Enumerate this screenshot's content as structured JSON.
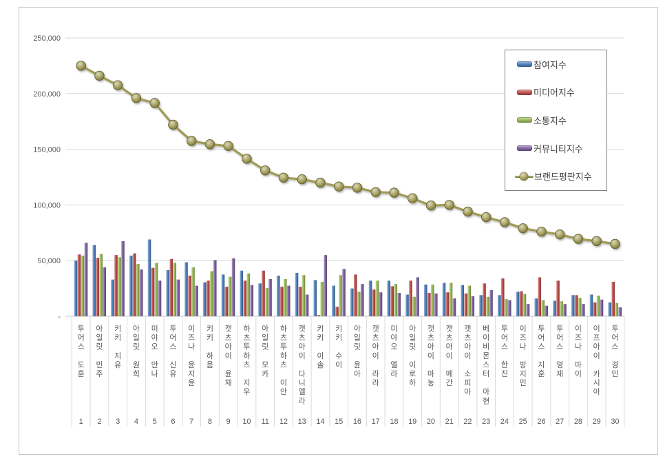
{
  "chart_data": {
    "type": "bar+line combo",
    "title": "",
    "categories": [
      "투어스 도훈",
      "아일릿 민주",
      "키키 지유",
      "아일릿 원희",
      "미야오 안나",
      "투어스 신유",
      "이즈나 윤지윤",
      "키키 하음",
      "캣츠아이 윤채",
      "하츠투하츠 지우",
      "아일릿 모카",
      "하츠투하츠 이안",
      "캣츠아이 다니엘라",
      "키키 이솔",
      "키키 수이",
      "아일릿 윤아",
      "캣츠아이 라라",
      "미야오 엘라",
      "아일릿 이로하",
      "캣츠아이 마농",
      "캣츠아이 메간",
      "캣츠아이 소피아",
      "베이비몬스터 아현",
      "투어스 한진",
      "이즈나 방지민",
      "투어스 지훈",
      "투어스 영재",
      "이즈나 마이",
      "이프아이 카시아",
      "투어스 경민"
    ],
    "ranks": [
      "1",
      "2",
      "3",
      "4",
      "5",
      "6",
      "7",
      "8",
      "9",
      "10",
      "11",
      "12",
      "13",
      "14",
      "15",
      "16",
      "17",
      "18",
      "19",
      "20",
      "21",
      "22",
      "23",
      "24",
      "25",
      "26",
      "27",
      "28",
      "29",
      "30"
    ],
    "series": [
      {
        "name": "참여지수",
        "type": "bar",
        "color": "#4F81BD",
        "values": [
          50000,
          64000,
          33000,
          54500,
          69000,
          41500,
          48500,
          30500,
          37500,
          41000,
          29500,
          36500,
          39000,
          32500,
          27500,
          25000,
          32000,
          32000,
          19500,
          28500,
          30000,
          28000,
          19000,
          19000,
          22000,
          16000,
          14000,
          19000,
          19500,
          12500
        ]
      },
      {
        "name": "미디어지수",
        "type": "bar",
        "color": "#C0504D",
        "values": [
          55500,
          52500,
          55000,
          56500,
          43500,
          51500,
          36500,
          32000,
          26500,
          32000,
          41000,
          26500,
          26500,
          1000,
          8500,
          37500,
          24000,
          27000,
          32000,
          21000,
          21500,
          20500,
          29500,
          34000,
          22500,
          35000,
          32000,
          19000,
          12500,
          31000
        ]
      },
      {
        "name": "소통지수",
        "type": "bar",
        "color": "#9BBB59",
        "values": [
          54500,
          56000,
          53000,
          47000,
          48000,
          48000,
          44000,
          40500,
          35500,
          38500,
          25500,
          33500,
          37000,
          31000,
          37000,
          22000,
          32000,
          29000,
          17500,
          28500,
          30000,
          27500,
          17500,
          15500,
          20000,
          14500,
          13500,
          16500,
          18500,
          12000
        ]
      },
      {
        "name": "커뮤니티지수",
        "type": "bar",
        "color": "#8064A2",
        "values": [
          66000,
          44000,
          67500,
          42000,
          32000,
          33000,
          27500,
          50500,
          52000,
          28000,
          33500,
          27500,
          19500,
          55000,
          42500,
          29000,
          21500,
          21000,
          35000,
          20500,
          16000,
          18000,
          23500,
          14500,
          11000,
          9500,
          11000,
          11000,
          15000,
          8000
        ]
      },
      {
        "name": "브랜드평판지수",
        "type": "line",
        "color": "#A09A55",
        "values": [
          225000,
          216000,
          207500,
          196000,
          191500,
          172000,
          157500,
          154500,
          153000,
          141500,
          131000,
          124500,
          123000,
          120000,
          116500,
          115500,
          111500,
          111000,
          106000,
          99500,
          100000,
          94000,
          89000,
          84500,
          79000,
          76000,
          73500,
          69500,
          67500,
          65000
        ]
      }
    ],
    "ylim": [
      0,
      250000
    ],
    "ytick_step": 50000,
    "ytick_labels": [
      "-",
      "50,000",
      "100,000",
      "150,000",
      "200,000",
      "250,000"
    ],
    "grid": true,
    "legend_position": "inside-top-right",
    "axis_text_color": "#595959",
    "gridline_color": "#D9D9D9"
  }
}
